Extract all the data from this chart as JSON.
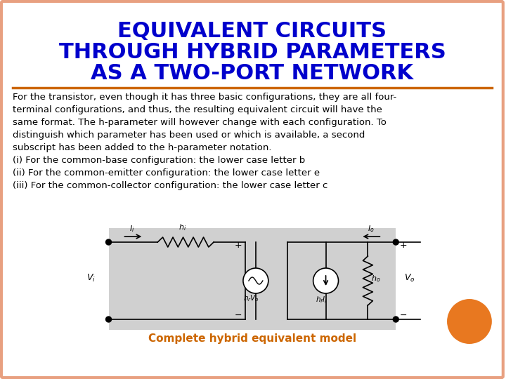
{
  "title_line1": "EQUIVALENT CIRCUITS",
  "title_line2": "THROUGH HYBRID PARAMETERS",
  "title_line3": "AS A TWO-PORT NETWORK",
  "title_color": "#0000CC",
  "title_fontsize": 22,
  "bg_color": "#FFFFFF",
  "border_color": "#E8A080",
  "divider_color": "#CC6600",
  "body_text": "For the transistor, even though it has three basic configurations, they are all four-\nterminal configurations, and thus, the resulting equivalent circuit will have the\nsame format. The h-parameter will however change with each configuration. To\ndistinguish which parameter has been used or which is available, a second\nsubscript has been added to the h-parameter notation.\n(i) For the common-base configuration: the lower case letter b\n(ii) For the common-emitter configuration: the lower case letter e\n(iii) For the common-collector configuration: the lower case letter c",
  "caption": "Complete hybrid equivalent model",
  "caption_color": "#CC6600",
  "caption_fontsize": 11,
  "body_fontsize": 9.5,
  "circuit_bg": "#D0D0D0",
  "orange_circle_color": "#E87820"
}
